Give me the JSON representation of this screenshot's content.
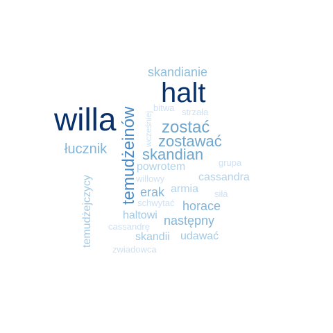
{
  "words": {
    "halt": {
      "text": "halt",
      "color": "#08306b"
    },
    "willa": {
      "text": "willa",
      "color": "#08306b"
    },
    "temudzeinow": {
      "text": "temudżeinów",
      "color": "#4a89c2"
    },
    "skandianie": {
      "text": "skandianie",
      "color": "#8fbdda"
    },
    "zostac": {
      "text": "zostać",
      "color": "#6ea6ce"
    },
    "zostawac": {
      "text": "zostawać",
      "color": "#6ea6ce"
    },
    "skandian": {
      "text": "skandian",
      "color": "#6ea6ce"
    },
    "lucznik": {
      "text": "łucznik",
      "color": "#84b5d9"
    },
    "powrotem": {
      "text": "powrotem",
      "color": "#b2d2e8"
    },
    "cassandra": {
      "text": "cassandra",
      "color": "#b2d2e8"
    },
    "erak": {
      "text": "erak",
      "color": "#84b5d9"
    },
    "armia": {
      "text": "armia",
      "color": "#b2d2e8"
    },
    "horace": {
      "text": "horace",
      "color": "#84b5d9"
    },
    "nastepny": {
      "text": "następny",
      "color": "#84b5d9"
    },
    "haltowi": {
      "text": "haltowi",
      "color": "#a3c9e3"
    },
    "skandii": {
      "text": "skandii",
      "color": "#a3c9e3"
    },
    "udawac": {
      "text": "udawać",
      "color": "#a3c9e3"
    },
    "temudzejczycy": {
      "text": "temudżejczycy",
      "color": "#a3c9e3"
    },
    "wczesniej": {
      "text": "wcześniej",
      "color": "#cfe1f2"
    },
    "bitwa": {
      "text": "bitwa",
      "color": "#cfe1f2"
    },
    "strzala": {
      "text": "strzała",
      "color": "#cfe1f2"
    },
    "grupa": {
      "text": "grupa",
      "color": "#cfe1f2"
    },
    "willowy": {
      "text": "willowy",
      "color": "#cfe1f2"
    },
    "sila": {
      "text": "siła",
      "color": "#cfe1f2"
    },
    "schwytac": {
      "text": "schwytać",
      "color": "#cfe1f2"
    },
    "cassandre": {
      "text": "cassandrę",
      "color": "#cfe1f2"
    },
    "zwiadowca": {
      "text": "zwiadowca",
      "color": "#cfe1f2"
    }
  }
}
